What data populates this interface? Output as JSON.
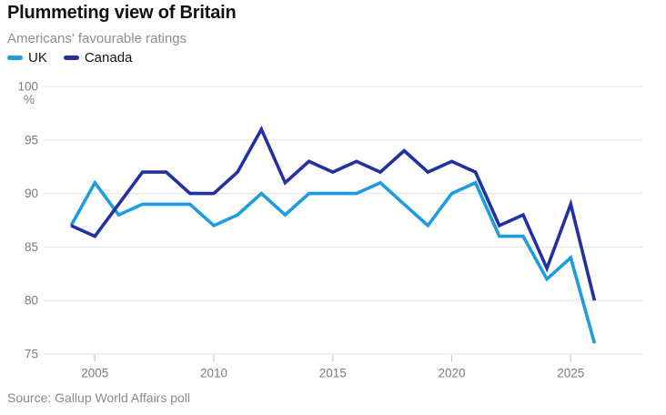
{
  "title": "Plummeting view of Britain",
  "subtitle": "Americans' favourable ratings",
  "legend": {
    "items": [
      {
        "label": "UK",
        "color": "#1e9ce0"
      },
      {
        "label": "Canada",
        "color": "#2231a2"
      }
    ]
  },
  "source": "Source: Gallup World Affairs poll",
  "colors": {
    "background": "#ffffff",
    "title_text": "#121212",
    "subtitle_text": "#8e8e8e",
    "axis_text": "#7b7b7b",
    "gridline": "#e2e2e2",
    "tick_mark": "#c9c9c9",
    "uk_line": "#1e9ce0",
    "canada_line": "#2231a2"
  },
  "chart_data": {
    "type": "line",
    "title": "Plummeting view of Britain",
    "subtitle": "Americans' favourable ratings",
    "x": [
      2004,
      2005,
      2006,
      2007,
      2008,
      2009,
      2010,
      2011,
      2012,
      2013,
      2014,
      2015,
      2016,
      2017,
      2018,
      2019,
      2020,
      2021,
      2022,
      2023,
      2024,
      2025,
      2026
    ],
    "series": [
      {
        "name": "UK",
        "color": "#1e9ce0",
        "values": [
          87,
          91,
          88,
          89,
          89,
          89,
          87,
          88,
          90,
          88,
          90,
          90,
          90,
          91,
          89,
          87,
          90,
          91,
          86,
          86,
          82,
          84,
          76
        ]
      },
      {
        "name": "Canada",
        "color": "#2231a2",
        "values": [
          87,
          86,
          89,
          92,
          92,
          90,
          90,
          92,
          96,
          91,
          93,
          92,
          93,
          92,
          94,
          92,
          93,
          92,
          87,
          88,
          83,
          89,
          80
        ]
      }
    ],
    "xlabel": "",
    "ylabel": "%",
    "ylim": [
      75,
      100
    ],
    "yticks": [
      100,
      95,
      90,
      85,
      80,
      75
    ],
    "xticks": [
      2005,
      2010,
      2015,
      2020,
      2025
    ],
    "grid": "horizontal",
    "legend_position": "top-left",
    "source": "Source: Gallup World Affairs poll"
  }
}
